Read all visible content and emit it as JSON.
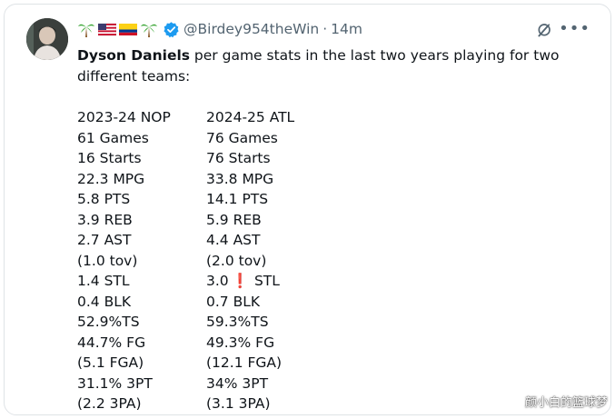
{
  "tweet": {
    "handle": "@Birdey954theWin",
    "separator": "·",
    "time": "14m",
    "emoji_icons": [
      "palm-tree-icon",
      "us-flag-icon",
      "colombia-flag-icon",
      "palm-tree-icon"
    ],
    "text_bold": "Dyson Daniels",
    "text_rest": " per game stats in the last two years playing for two different teams:",
    "more_label": "•••",
    "colors": {
      "verified": "#1d9bf0",
      "secondary": "#536471",
      "exclamation": "#d12a35"
    }
  },
  "stats": {
    "rows": [
      {
        "left": "2023-24 NOP",
        "right": "2024-25 ATL"
      },
      {
        "left": "61 Games",
        "right": "76 Games"
      },
      {
        "left": "16 Starts",
        "right": "76 Starts"
      },
      {
        "left": "22.3 MPG",
        "right": "33.8 MPG"
      },
      {
        "left": "5.8 PTS",
        "right": "14.1 PTS"
      },
      {
        "left": "3.9 REB",
        "right": "5.9 REB"
      },
      {
        "left": "2.7 AST",
        "right": "4.4 AST"
      },
      {
        "left": "(1.0 tov)",
        "right": "(2.0 tov)"
      },
      {
        "left": "1.4 STL",
        "right_a": "3.0",
        "right_excl": "❗",
        "right_b": "STL"
      },
      {
        "left": "0.4 BLK",
        "right": "0.7 BLK"
      },
      {
        "left": "52.9%TS",
        "right": "59.3%TS"
      },
      {
        "left": "44.7% FG",
        "right": "49.3% FG"
      },
      {
        "left": "(5.1 FGA)",
        "right": "(12.1 FGA)"
      },
      {
        "left": "31.1% 3PT",
        "right": "34% 3PT"
      },
      {
        "left": "(2.2 3PA)",
        "right": "(3.1 3PA)"
      }
    ]
  },
  "watermark": "颜小白的篮球梦"
}
